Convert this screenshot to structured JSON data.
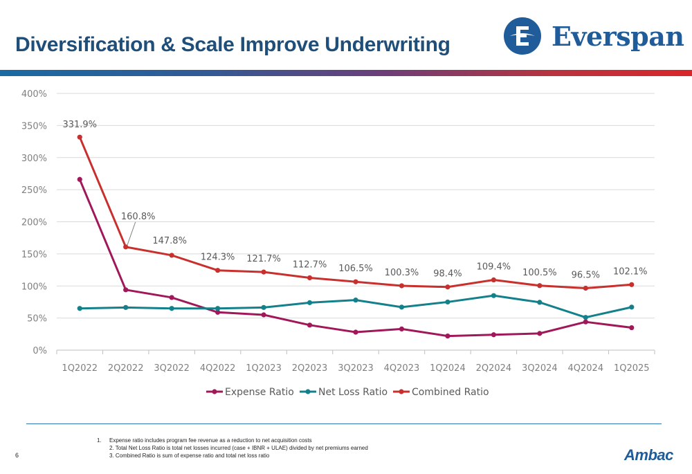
{
  "page": {
    "title": "Diversification & Scale Improve Underwriting",
    "brand_name": "Everspan",
    "page_number": "6",
    "footer_logo": "Ambac",
    "footnotes": [
      {
        "num": "1.",
        "text": "Expense ratio includes program fee revenue as a reduction to net acquisition costs"
      },
      {
        "num": "",
        "text": "2. Total Net Loss Ratio is total net losses incurred (case + IBNR + ULAE) divided by net premiums earned"
      },
      {
        "num": "",
        "text": "3. Combined Ratio is sum of expense ratio and total net loss ratio"
      }
    ],
    "colors": {
      "title": "#1f4e79",
      "brand_blue": "#1f5c99",
      "expense": "#a0185a",
      "net_loss": "#13808a",
      "combined": "#c8302d"
    }
  },
  "chart_data": {
    "type": "line",
    "categories": [
      "1Q2022",
      "2Q2022",
      "3Q2022",
      "4Q2022",
      "1Q2023",
      "2Q2023",
      "3Q2023",
      "4Q2023",
      "1Q2024",
      "2Q2024",
      "3Q2024",
      "4Q2024",
      "1Q2025"
    ],
    "y_ticks": [
      "0%",
      "50%",
      "100%",
      "150%",
      "200%",
      "250%",
      "300%",
      "350%",
      "400%"
    ],
    "ylim": [
      0,
      400
    ],
    "grid": true,
    "legend_position": "bottom-center",
    "series": [
      {
        "name": "Expense Ratio",
        "color": "#a0185a",
        "values": [
          266,
          94,
          82,
          59,
          55,
          39,
          28,
          33,
          22,
          24,
          26,
          44,
          35
        ]
      },
      {
        "name": "Net Loss Ratio",
        "color": "#13808a",
        "values": [
          65,
          66.5,
          65,
          65,
          66.5,
          74,
          78,
          67,
          75,
          85,
          74.5,
          51,
          67
        ]
      },
      {
        "name": "Combined Ratio",
        "color": "#c8302d",
        "values": [
          331.9,
          160.8,
          147.8,
          124.3,
          121.7,
          112.7,
          106.5,
          100.3,
          98.4,
          109.4,
          100.5,
          96.5,
          102.1
        ],
        "labels": [
          "331.9%",
          "160.8%",
          "147.8%",
          "124.3%",
          "121.7%",
          "112.7%",
          "106.5%",
          "100.3%",
          "98.4%",
          "109.4%",
          "100.5%",
          "96.5%",
          "102.1%"
        ]
      }
    ]
  }
}
